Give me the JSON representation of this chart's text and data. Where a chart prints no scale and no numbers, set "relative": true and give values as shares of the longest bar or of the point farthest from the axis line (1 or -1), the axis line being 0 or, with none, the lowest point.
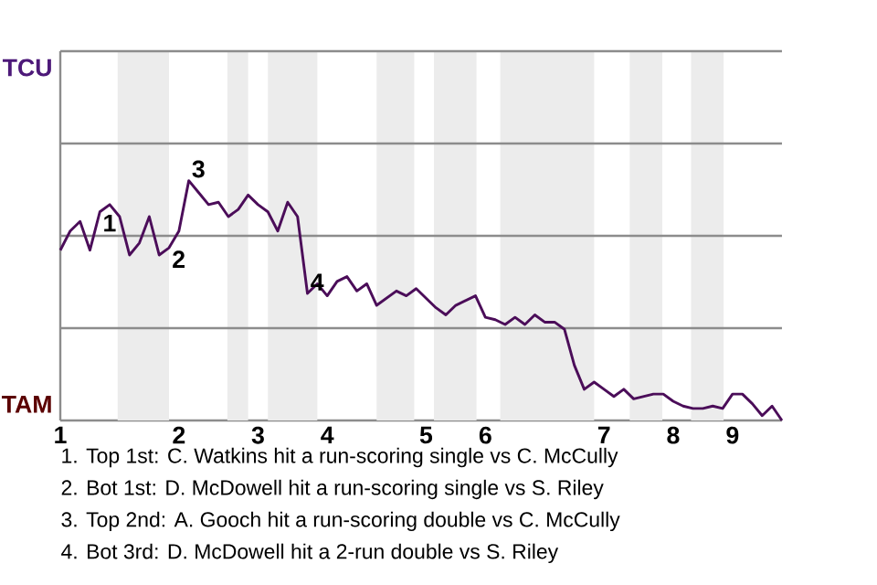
{
  "chart_data": {
    "type": "line",
    "relative": true,
    "color": "#4b0d59",
    "ref_lines": [
      {
        "axis": "y",
        "value": 0.385,
        "color": "#8c8c8c"
      },
      {
        "axis": "y",
        "value": 0.77,
        "color": "#8c8c8c"
      },
      {
        "axis": "y",
        "value": 1.155,
        "color": "#8c8c8c"
      },
      {
        "axis": "y",
        "value": 1.54,
        "color": "#8c8c8c"
      }
    ],
    "categories": [
      "1",
      null,
      null,
      null,
      null,
      null,
      null,
      null,
      null,
      null,
      null,
      null,
      "2",
      null,
      null,
      null,
      null,
      null,
      null,
      null,
      "3",
      null,
      null,
      null,
      null,
      null,
      null,
      "4",
      null,
      null,
      null,
      null,
      null,
      null,
      null,
      null,
      null,
      "5",
      null,
      null,
      null,
      null,
      null,
      "6",
      null,
      null,
      null,
      null,
      null,
      null,
      null,
      null,
      null,
      null,
      null,
      "7",
      null,
      null,
      null,
      null,
      null,
      null,
      "8",
      null,
      null,
      null,
      null,
      null,
      "9",
      null,
      null,
      null,
      null,
      null
    ],
    "values": [
      0.71,
      0.79,
      0.83,
      0.71,
      0.87,
      0.9,
      0.85,
      0.69,
      0.74,
      0.85,
      0.69,
      0.72,
      0.79,
      1,
      0.95,
      0.9,
      0.91,
      0.85,
      0.88,
      0.94,
      0.9,
      0.87,
      0.79,
      0.91,
      0.85,
      0.53,
      0.57,
      0.52,
      0.58,
      0.6,
      0.54,
      0.57,
      0.48,
      0.51,
      0.54,
      0.52,
      0.55,
      0.51,
      0.47,
      0.44,
      0.48,
      0.5,
      0.52,
      0.43,
      0.42,
      0.4,
      0.43,
      0.4,
      0.44,
      0.41,
      0.41,
      0.38,
      0.23,
      0.13,
      0.16,
      0.13,
      0.1,
      0.13,
      0.09,
      0.1,
      0.11,
      0.11,
      0.08,
      0.06,
      0.05,
      0.05,
      0.06,
      0.05,
      0.11,
      0.11,
      0.07,
      0.02,
      0.06,
      0
    ],
    "annotations": [
      "TCU",
      "TAM",
      {
        "text": "1",
        "y": 0.87
      },
      {
        "text": "2",
        "y": 0.72
      },
      {
        "text": "3",
        "y": 1
      },
      {
        "text": "4",
        "y": 0.53
      },
      "1. Top 1st: C. Watkins hit a run-scoring single vs C. McCully",
      "2. Bot 1st: D. McDowell hit a run-scoring single vs S. Riley",
      "3. Top 2nd: A. Gooch hit a run-scoring double vs C. McCully",
      "4. Bot 3rd: D. McDowell hit a 2-run double vs S. Riley"
    ]
  }
}
